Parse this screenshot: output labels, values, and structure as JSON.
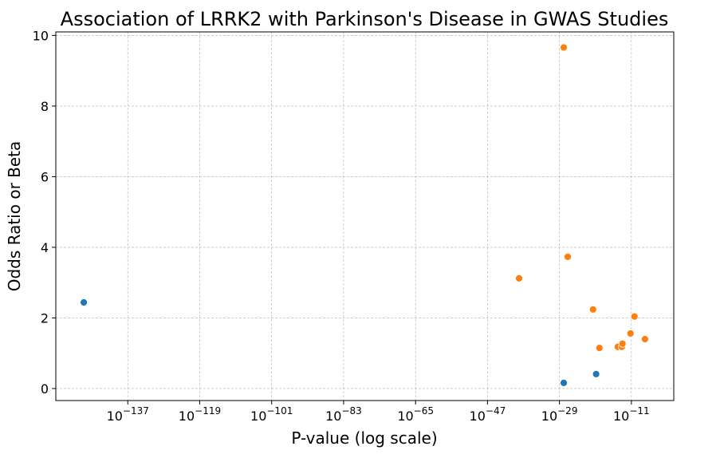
{
  "chart_data": {
    "type": "scatter",
    "title": "Association of LRRK2 with Parkinson's Disease in GWAS Studies",
    "xlabel": "P-value (log scale)",
    "ylabel": "Odds Ratio or Beta",
    "xscale": "log",
    "xlim": [
      1e-155,
      0.4
    ],
    "ylim": [
      -0.34,
      10.1
    ],
    "grid": true,
    "x_ticks": [
      1e-137,
      1e-119,
      1e-101,
      1e-83,
      1e-65,
      1e-47,
      1e-29,
      1e-11
    ],
    "x_tick_exponents": [
      "−137",
      "−119",
      "−101",
      "−83",
      "−65",
      "−47",
      "−29",
      "−11"
    ],
    "y_ticks": [
      0,
      2,
      4,
      6,
      8,
      10
    ],
    "series": [
      {
        "color": "#1f77b4",
        "points": [
          [
            1e-148,
            2.44
          ],
          [
            1.2e-28,
            0.16
          ],
          [
            1.5e-20,
            0.41
          ]
        ]
      },
      {
        "color": "#ff7f0e",
        "points": [
          [
            1.2e-28,
            9.66
          ],
          [
            1.2e-27,
            3.73
          ],
          [
            8e-40,
            3.12
          ],
          [
            2.5e-21,
            2.24
          ],
          [
            6e-11,
            2.04
          ],
          [
            6e-12,
            1.56
          ],
          [
            2.5e-08,
            1.4
          ],
          [
            1e-19,
            1.15
          ],
          [
            4e-15,
            1.18
          ],
          [
            4e-14,
            1.18
          ],
          [
            6e-14,
            1.27
          ]
        ]
      }
    ]
  }
}
